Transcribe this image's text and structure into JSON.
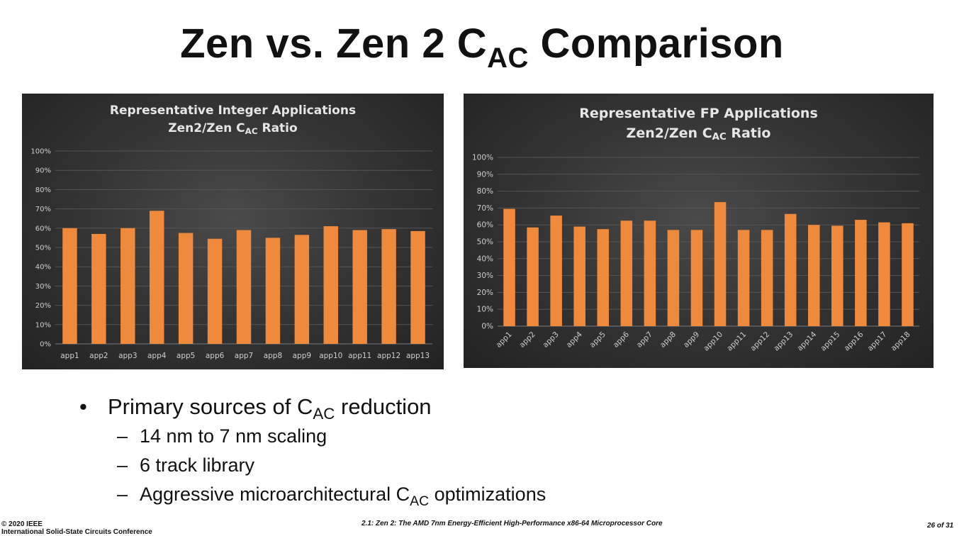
{
  "slide": {
    "title_main": "Zen vs. Zen 2 C",
    "title_sub": "AC",
    "title_tail": " Comparison"
  },
  "bullets": {
    "main": {
      "marker": "•",
      "text": "Primary sources of C",
      "sub": "AC",
      "tail": " reduction"
    },
    "items": [
      {
        "marker": "–",
        "text": "14 nm to 7 nm scaling",
        "sub": "",
        "tail": ""
      },
      {
        "marker": "–",
        "text": "6 track library",
        "sub": "",
        "tail": ""
      },
      {
        "marker": "–",
        "text": "Aggressive microarchitectural C",
        "sub": "AC",
        "tail": " optimizations"
      }
    ]
  },
  "footer": {
    "copyright": "© 2020 IEEE",
    "conference": "International Solid-State Circuits Conference",
    "paper": "2.1: Zen 2: The AMD 7nm Energy-Efficient High-Performance x86-64 Microprocessor Core",
    "page": "26 of 31"
  },
  "colors": {
    "bar": "#ef8a3c",
    "panel_background": "#333333",
    "gridline": "#555555",
    "text_light": "#e6e6e6"
  },
  "chart_data": [
    {
      "type": "bar",
      "title_line1": "Representative Integer Applications",
      "title_line2": "Zen2/Zen C",
      "title_line2_sub": "AC",
      "title_line2_tail": " Ratio",
      "categories": [
        "app1",
        "app2",
        "app3",
        "app4",
        "app5",
        "app6",
        "app7",
        "app8",
        "app9",
        "app10",
        "app11",
        "app12",
        "app13"
      ],
      "values": [
        60,
        57,
        60,
        69,
        57.5,
        54.5,
        59,
        55,
        56.5,
        61,
        59,
        59.5,
        58.5
      ],
      "ylim": [
        0,
        100
      ],
      "yticks": [
        "0%",
        "10%",
        "20%",
        "30%",
        "40%",
        "50%",
        "60%",
        "70%",
        "80%",
        "90%",
        "100%"
      ],
      "xlabel": "",
      "ylabel": "",
      "grid": true,
      "legend": "none"
    },
    {
      "type": "bar",
      "title_line1": "Representative FP Applications",
      "title_line2": "Zen2/Zen C",
      "title_line2_sub": "AC",
      "title_line2_tail": " Ratio",
      "categories": [
        "app1",
        "app2",
        "app3",
        "app4",
        "app5",
        "app6",
        "app7",
        "app8",
        "app9",
        "app10",
        "app11",
        "app12",
        "app13",
        "app14",
        "app15",
        "app16",
        "app17",
        "app18"
      ],
      "values": [
        69.5,
        58.5,
        65.5,
        59,
        57.5,
        62.5,
        62.5,
        57,
        57,
        73.5,
        57,
        57,
        66.5,
        60,
        59.5,
        63,
        61.5,
        61
      ],
      "ylim": [
        0,
        100
      ],
      "yticks": [
        "0%",
        "10%",
        "20%",
        "30%",
        "40%",
        "50%",
        "60%",
        "70%",
        "80%",
        "90%",
        "100%"
      ],
      "xlabel": "",
      "ylabel": "",
      "grid": true,
      "legend": "none"
    }
  ]
}
